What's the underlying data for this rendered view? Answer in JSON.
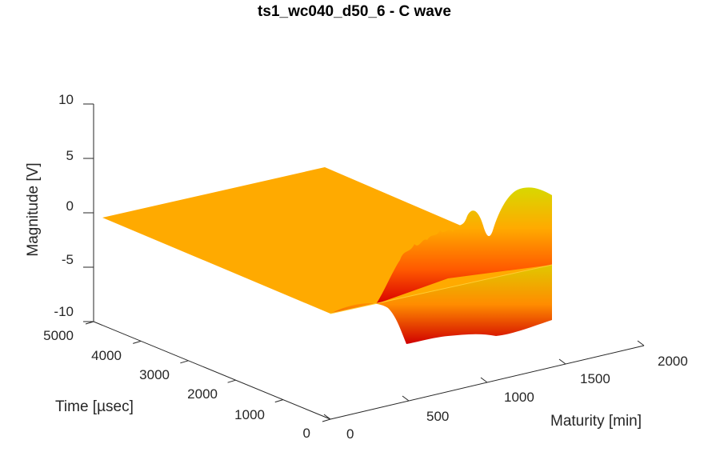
{
  "chart_data": {
    "type": "surface",
    "title": "ts1_wc040_d50_6 - C wave",
    "xlabel": "Maturity [min]",
    "ylabel": "Time [µsec]",
    "zlabel": "Magnitude [V]",
    "xlim": [
      0,
      2000
    ],
    "ylim": [
      0,
      5000
    ],
    "zlim": [
      -10,
      10
    ],
    "x_ticks": [
      "0",
      "500",
      "1000",
      "1500",
      "2000"
    ],
    "y_ticks": [
      "0",
      "1000",
      "2000",
      "3000",
      "4000",
      "5000"
    ],
    "z_ticks": [
      "10",
      "5",
      "0",
      "-5",
      "-10"
    ],
    "grid": false,
    "colormap": [
      "#d90000",
      "#ff8000",
      "#ffaa00",
      "#d8d800"
    ],
    "flat_level": 0,
    "data_extent": {
      "maturity": [
        0,
        1550
      ],
      "time": [
        0,
        5000
      ]
    },
    "signal_region": {
      "time": [
        0,
        1200
      ],
      "amplitude_peak": 6.5,
      "amplitude_trough": -6
    }
  }
}
